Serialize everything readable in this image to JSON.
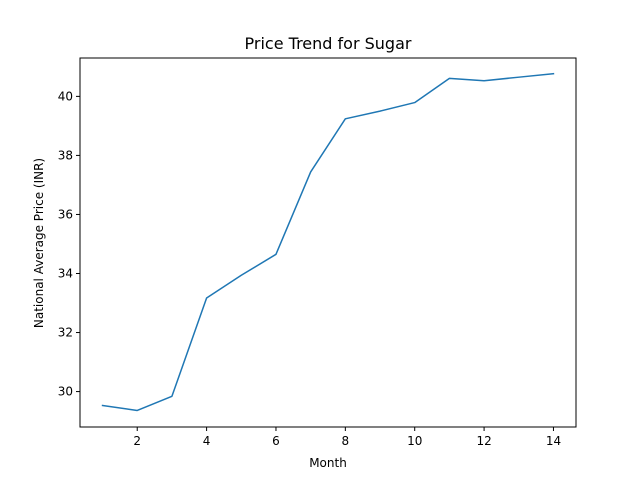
{
  "chart_data": {
    "type": "line",
    "title": "Price Trend for Sugar",
    "xlabel": "Month",
    "ylabel": "National Average Price (INR)",
    "x": [
      1,
      2,
      3,
      4,
      5,
      6,
      7,
      8,
      9,
      10,
      11,
      12,
      13,
      14
    ],
    "series": [
      {
        "values": [
          29.53,
          29.36,
          29.84,
          33.17,
          33.94,
          34.65,
          37.44,
          39.24,
          39.5,
          39.79,
          40.61,
          40.53,
          40.65,
          40.77
        ],
        "color": "#1f77b4"
      }
    ],
    "xlim": [
      0.35,
      14.65
    ],
    "ylim": [
      28.8,
      41.3
    ],
    "xticks": [
      2,
      4,
      6,
      8,
      10,
      12,
      14
    ],
    "yticks": [
      30,
      32,
      34,
      36,
      38,
      40
    ],
    "grid": false,
    "legend": "none"
  }
}
